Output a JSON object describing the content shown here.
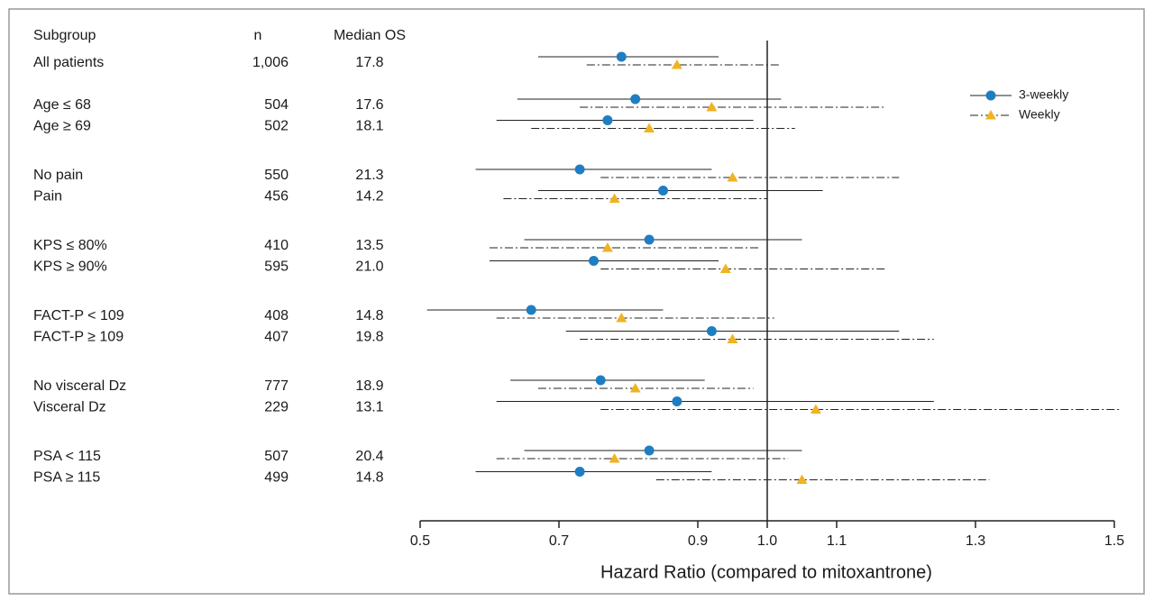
{
  "chart_data": {
    "type": "forest",
    "column_headers": [
      "Subgroup",
      "n",
      "Median OS"
    ],
    "categories": [
      "All patients",
      "Age ≤ 68",
      "Age ≥ 69",
      "No pain",
      "Pain",
      "KPS ≤ 80%",
      "KPS ≥ 90%",
      "FACT-P < 109",
      "FACT-P ≥ 109",
      "No visceral Dz",
      "Visceral Dz",
      "PSA < 115",
      "PSA  ≥ 115"
    ],
    "n": [
      "1,006",
      "504",
      "502",
      "550",
      "456",
      "410",
      "595",
      "408",
      "407",
      "777",
      "229",
      "507",
      "499"
    ],
    "median_os": [
      "17.8",
      "17.6",
      "18.1",
      "21.3",
      "14.2",
      "13.5",
      "21.0",
      "14.8",
      "19.8",
      "18.9",
      "13.1",
      "20.4",
      "14.8"
    ],
    "series": [
      {
        "name": "3-weekly",
        "color": "#1f7ec2",
        "marker": "circle",
        "line": "solid",
        "values": [
          0.79,
          0.81,
          0.77,
          0.73,
          0.85,
          0.83,
          0.75,
          0.66,
          0.92,
          0.76,
          0.87,
          0.83,
          0.73
        ],
        "lower": [
          0.67,
          0.64,
          0.61,
          0.58,
          0.67,
          0.65,
          0.6,
          0.51,
          0.71,
          0.63,
          0.61,
          0.65,
          0.58
        ],
        "upper": [
          0.93,
          1.02,
          0.98,
          0.92,
          1.08,
          1.05,
          0.93,
          0.85,
          1.19,
          0.91,
          1.24,
          1.05,
          0.92
        ]
      },
      {
        "name": "Weekly",
        "color": "#f0b323",
        "marker": "triangle",
        "line": "dashdot",
        "values": [
          0.87,
          0.92,
          0.83,
          0.95,
          0.78,
          0.77,
          0.94,
          0.79,
          0.95,
          0.81,
          1.07,
          0.78,
          1.05
        ],
        "lower": [
          0.74,
          0.73,
          0.66,
          0.76,
          0.62,
          0.6,
          0.76,
          0.61,
          0.73,
          0.67,
          0.76,
          0.61,
          0.84
        ],
        "upper": [
          1.02,
          1.17,
          1.04,
          1.19,
          1.0,
          0.99,
          1.17,
          1.01,
          1.24,
          0.98,
          1.51,
          1.03,
          1.32
        ]
      }
    ],
    "reference_line": 1,
    "xlim": [
      0.5,
      1.5
    ],
    "xticks": [
      0.5,
      0.7,
      0.9,
      {
        "value": 1,
        "label": "1.0"
      },
      1.1,
      1.3,
      1.5
    ],
    "xlabel": "Hazard Ratio (compared to mitoxantrone)",
    "legend": "upper right"
  }
}
